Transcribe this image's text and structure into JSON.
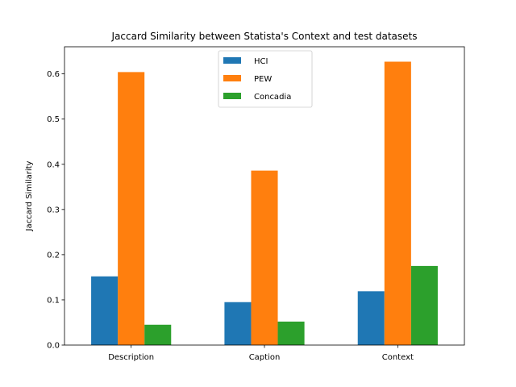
{
  "chart_data": {
    "type": "bar",
    "title": "Jaccard Similarity between Statista's Context and test datasets",
    "xlabel": "",
    "ylabel": "Jaccard Similarity",
    "categories": [
      "Description",
      "Caption",
      "Context"
    ],
    "series": [
      {
        "name": "HCI",
        "color": "#1f77b4",
        "values": [
          0.152,
          0.095,
          0.119
        ]
      },
      {
        "name": "PEW",
        "color": "#ff7f0e",
        "values": [
          0.604,
          0.386,
          0.627
        ]
      },
      {
        "name": "Concadia",
        "color": "#2ca02c",
        "values": [
          0.045,
          0.052,
          0.175
        ]
      }
    ],
    "ylim": [
      0,
      0.66
    ],
    "yticks": [
      "0.0",
      "0.1",
      "0.2",
      "0.3",
      "0.4",
      "0.5",
      "0.6"
    ],
    "legend_position": "top-center",
    "grid": false
  }
}
